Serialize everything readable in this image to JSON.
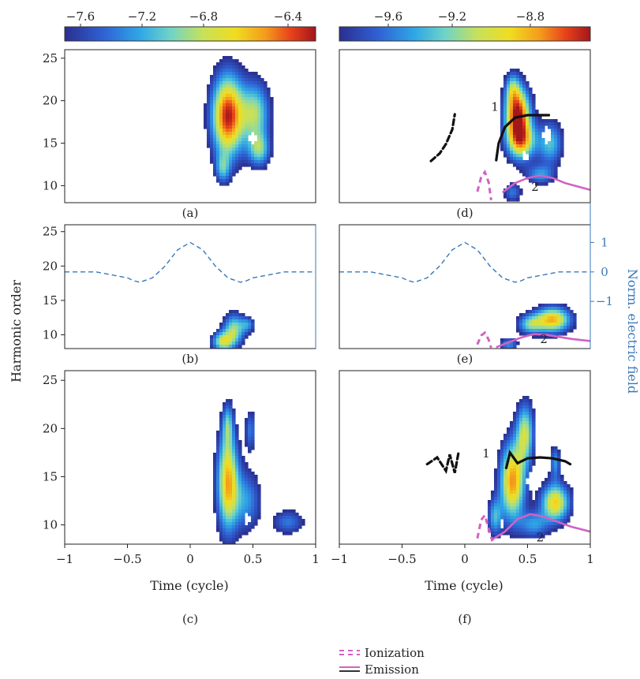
{
  "chart_data": {
    "type": "heatmap",
    "colormap": "jet",
    "colors": {
      "field_line": "#3a78b8",
      "ionization": "#d062c4",
      "emission": "#d062c4",
      "trajectory": "#111111",
      "axis": "#222222"
    },
    "colorbars": [
      {
        "ticks": [
          "−7.6",
          "−7.2",
          "−6.8",
          "−6.4"
        ],
        "values": [
          -7.6,
          -7.2,
          -6.8,
          -6.4
        ],
        "range": [
          -7.85,
          -6.2
        ]
      },
      {
        "ticks": [
          "−9.6",
          "−9.2",
          "−8.8"
        ],
        "values": [
          -9.6,
          -9.2,
          -8.8
        ],
        "range": [
          -9.85,
          -8.6
        ]
      }
    ],
    "x_axis": {
      "label": "Time (cycle)",
      "range": [
        -1,
        1
      ],
      "ticks": [
        "−1",
        "−0.5",
        "0",
        "0.5",
        "1"
      ],
      "tick_values": [
        -1,
        -0.5,
        0,
        0.5,
        1
      ]
    },
    "y_axis": {
      "label": "Harmonic order",
      "range": [
        8,
        26
      ],
      "ticks": [
        "25",
        "20",
        "15",
        "10"
      ],
      "tick_values": [
        25,
        20,
        15,
        10
      ]
    },
    "right_axis": {
      "label": "Norm. electric field",
      "range": [
        -2.6,
        1.6
      ],
      "ticks": [
        "1",
        "0",
        "−1"
      ],
      "tick_values": [
        1,
        0,
        -1
      ]
    },
    "panels": [
      {
        "id": "a",
        "label": "(a)",
        "colorbar": 0,
        "blobs": [
          {
            "cx": 0.3,
            "cy": 18.2,
            "sx": 0.09,
            "sy": 3.4,
            "amp": 1.0
          },
          {
            "cx": 0.52,
            "cy": 18.5,
            "sx": 0.08,
            "sy": 2.6,
            "amp": 0.55
          },
          {
            "cx": 0.55,
            "cy": 14.2,
            "sx": 0.06,
            "sy": 1.4,
            "amp": 0.45
          },
          {
            "cx": 0.26,
            "cy": 12.0,
            "sx": 0.04,
            "sy": 1.2,
            "amp": 0.35
          }
        ],
        "holes": [
          {
            "cx": 0.5,
            "cy": 15.6,
            "rx": 0.03,
            "ry": 0.6
          }
        ],
        "trajectories": [],
        "ionization": [],
        "emission": [],
        "annotations": []
      },
      {
        "id": "d",
        "label": "(d)",
        "colorbar": 1,
        "blobs": [
          {
            "cx": 0.42,
            "cy": 18.5,
            "sx": 0.07,
            "sy": 2.2,
            "amp": 1.0
          },
          {
            "cx": 0.45,
            "cy": 15.2,
            "sx": 0.08,
            "sy": 1.6,
            "amp": 0.7
          },
          {
            "cx": 0.68,
            "cy": 15.0,
            "sx": 0.07,
            "sy": 1.8,
            "amp": 0.45
          },
          {
            "cx": 0.38,
            "cy": 21.5,
            "sx": 0.04,
            "sy": 1.3,
            "amp": 0.35
          },
          {
            "cx": 0.6,
            "cy": 11.3,
            "sx": 0.08,
            "sy": 0.8,
            "amp": 0.35
          },
          {
            "cx": 0.38,
            "cy": 9.2,
            "sx": 0.05,
            "sy": 0.8,
            "amp": 0.3
          }
        ],
        "holes": [
          {
            "cx": 0.65,
            "cy": 16.0,
            "rx": 0.03,
            "ry": 1.0
          },
          {
            "cx": 0.48,
            "cy": 13.4,
            "rx": 0.025,
            "ry": 0.6
          }
        ],
        "trajectories": [
          {
            "x": [
              -0.27,
              -0.2,
              -0.15,
              -0.1,
              -0.08
            ],
            "y": [
              12.9,
              13.8,
              14.9,
              16.6,
              18.4
            ],
            "style": "dash"
          },
          {
            "x": [
              0.25,
              0.27,
              0.32,
              0.4,
              0.5,
              0.6,
              0.67
            ],
            "y": [
              13.0,
              15.0,
              16.9,
              18.0,
              18.3,
              18.3,
              18.3
            ],
            "style": "solid"
          }
        ],
        "ionization": [
          {
            "x": [
              0.1,
              0.13,
              0.16,
              0.19,
              0.21
            ],
            "y": [
              9.3,
              11.0,
              11.6,
              10.4,
              8.3
            ]
          }
        ],
        "emission": [
          {
            "x": [
              0.3,
              0.4,
              0.5,
              0.6,
              0.7,
              0.8,
              0.9,
              1.0
            ],
            "y": [
              9.2,
              10.3,
              10.9,
              11.2,
              10.9,
              10.3,
              9.9,
              9.5
            ]
          }
        ],
        "annotations": [
          {
            "text": "1",
            "x": 0.24,
            "y": 18.8
          },
          {
            "text": "2",
            "x": 0.56,
            "y": 9.4
          }
        ]
      },
      {
        "id": "b",
        "label": "(b)",
        "colorbar": 0,
        "blobs": [
          {
            "cx": 0.35,
            "cy": 10.8,
            "sx": 0.06,
            "sy": 1.6,
            "amp": 0.55
          },
          {
            "cx": 0.26,
            "cy": 9.0,
            "sx": 0.06,
            "sy": 1.0,
            "amp": 0.6
          },
          {
            "cx": 0.46,
            "cy": 11.5,
            "sx": 0.04,
            "sy": 0.8,
            "amp": 0.3
          }
        ],
        "holes": [],
        "trajectories": [],
        "ionization": [],
        "emission": [],
        "annotations": []
      },
      {
        "id": "e",
        "label": "(e)",
        "colorbar": 1,
        "blobs": [
          {
            "cx": 0.7,
            "cy": 12.2,
            "sx": 0.1,
            "sy": 1.3,
            "amp": 0.8
          },
          {
            "cx": 0.52,
            "cy": 11.5,
            "sx": 0.07,
            "sy": 1.0,
            "amp": 0.45
          },
          {
            "cx": 0.35,
            "cy": 8.6,
            "sx": 0.05,
            "sy": 0.7,
            "amp": 0.35
          }
        ],
        "holes": [],
        "trajectories": [],
        "ionization": [
          {
            "x": [
              0.1,
              0.13,
              0.16,
              0.19,
              0.21
            ],
            "y": [
              8.6,
              9.9,
              10.3,
              9.3,
              8.1
            ]
          }
        ],
        "emission": [
          {
            "x": [
              0.25,
              0.35,
              0.45,
              0.55,
              0.65,
              0.75,
              0.85,
              1.0
            ],
            "y": [
              8.2,
              8.9,
              9.6,
              10.1,
              10.0,
              9.7,
              9.4,
              9.1
            ]
          }
        ],
        "annotations": [
          {
            "text": "2",
            "x": 0.63,
            "y": 8.8
          }
        ]
      },
      {
        "id": "c",
        "label": "(c)",
        "colorbar": 0,
        "blobs": [
          {
            "cx": 0.3,
            "cy": 14.5,
            "sx": 0.06,
            "sy": 3.6,
            "amp": 0.8
          },
          {
            "cx": 0.3,
            "cy": 20.5,
            "sx": 0.03,
            "sy": 1.5,
            "amp": 0.35
          },
          {
            "cx": 0.48,
            "cy": 19.8,
            "sx": 0.03,
            "sy": 1.5,
            "amp": 0.3
          },
          {
            "cx": 0.45,
            "cy": 12.5,
            "sx": 0.08,
            "sy": 2.2,
            "amp": 0.35
          },
          {
            "cx": 0.78,
            "cy": 10.3,
            "sx": 0.09,
            "sy": 0.9,
            "amp": 0.3
          }
        ],
        "holes": [
          {
            "cx": 0.45,
            "cy": 10.6,
            "rx": 0.025,
            "ry": 0.6
          }
        ],
        "trajectories": [],
        "ionization": [],
        "emission": [],
        "annotations": []
      },
      {
        "id": "f",
        "label": "(f)",
        "colorbar": 1,
        "blobs": [
          {
            "cx": 0.38,
            "cy": 14.5,
            "sx": 0.07,
            "sy": 2.8,
            "amp": 0.85
          },
          {
            "cx": 0.48,
            "cy": 19.5,
            "sx": 0.05,
            "sy": 2.2,
            "amp": 0.6
          },
          {
            "cx": 0.72,
            "cy": 12.3,
            "sx": 0.08,
            "sy": 1.4,
            "amp": 0.75
          },
          {
            "cx": 0.72,
            "cy": 16.5,
            "sx": 0.03,
            "sy": 1.2,
            "amp": 0.35
          },
          {
            "cx": 0.24,
            "cy": 10.8,
            "sx": 0.04,
            "sy": 1.4,
            "amp": 0.4
          },
          {
            "cx": 0.55,
            "cy": 10.0,
            "sx": 0.08,
            "sy": 1.0,
            "amp": 0.35
          }
        ],
        "holes": [
          {
            "cx": 0.17,
            "cy": 11.8,
            "rx": 0.025,
            "ry": 0.7
          },
          {
            "cx": 0.52,
            "cy": 14.6,
            "rx": 0.025,
            "ry": 0.9
          },
          {
            "cx": 0.3,
            "cy": 10.2,
            "rx": 0.02,
            "ry": 0.5
          }
        ],
        "trajectories": [
          {
            "x": [
              -0.3,
              -0.22,
              -0.15,
              -0.12,
              -0.08,
              -0.05
            ],
            "y": [
              16.3,
              17.0,
              15.6,
              17.3,
              15.4,
              17.5
            ],
            "style": "dash"
          },
          {
            "x": [
              0.33,
              0.36,
              0.42,
              0.5,
              0.6,
              0.7,
              0.8,
              0.84
            ],
            "y": [
              15.9,
              17.5,
              16.4,
              16.9,
              17.0,
              16.9,
              16.6,
              16.3
            ],
            "style": "solid"
          }
        ],
        "ionization": [
          {
            "x": [
              0.1,
              0.13,
              0.16,
              0.19,
              0.22
            ],
            "y": [
              8.6,
              10.5,
              11.0,
              9.6,
              8.3
            ]
          }
        ],
        "emission": [
          {
            "x": [
              0.22,
              0.32,
              0.42,
              0.52,
              0.62,
              0.72,
              0.85,
              1.0
            ],
            "y": [
              8.5,
              9.3,
              10.6,
              11.1,
              10.9,
              10.4,
              9.8,
              9.3
            ]
          }
        ],
        "annotations": [
          {
            "text": "1",
            "x": 0.17,
            "y": 17.0
          },
          {
            "text": "2",
            "x": 0.6,
            "y": 8.3
          }
        ]
      }
    ],
    "field": {
      "x": [
        -1,
        -0.75,
        -0.5,
        -0.45,
        -0.4,
        -0.3,
        -0.2,
        -0.1,
        0,
        0.1,
        0.2,
        0.3,
        0.4,
        0.45,
        0.5,
        0.75,
        1
      ],
      "y": [
        0,
        0,
        -0.2,
        -0.3,
        -0.35,
        -0.2,
        0.2,
        0.75,
        1.0,
        0.75,
        0.2,
        -0.2,
        -0.35,
        -0.3,
        -0.2,
        0,
        0
      ]
    },
    "legend": [
      {
        "label": "Ionization",
        "style": "dashed"
      },
      {
        "label": "Emission",
        "style": "solid"
      }
    ]
  }
}
